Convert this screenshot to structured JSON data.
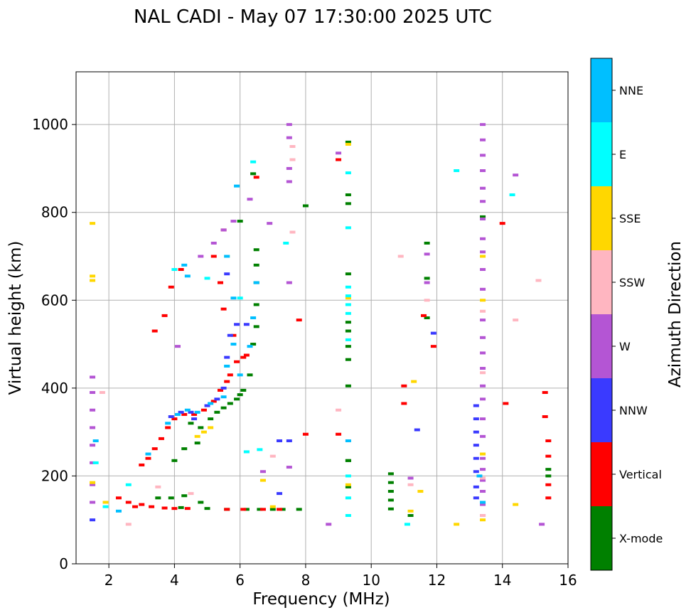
{
  "chart_data": {
    "type": "scatter",
    "title": "NAL CADI - May 07 17:30:00 2025 UTC",
    "xlabel": "Frequency (MHz)",
    "ylabel": "Virtual height (km)",
    "xlim": [
      1,
      16
    ],
    "ylim": [
      0,
      1120
    ],
    "xticks": [
      2,
      4,
      6,
      8,
      10,
      12,
      14,
      16
    ],
    "yticks": [
      0,
      200,
      400,
      600,
      800,
      1000
    ],
    "xtick_labels": [
      "2",
      "4",
      "6",
      "8",
      "10",
      "12",
      "14",
      "16"
    ],
    "ytick_labels": [
      "0",
      "200",
      "400",
      "600",
      "800",
      "1000"
    ],
    "grid": true,
    "colorbar": {
      "label": "Azimuth Direction",
      "categories": [
        "X-mode",
        "Vertical",
        "NNW",
        "W",
        "SSW",
        "SSE",
        "E",
        "NNE"
      ],
      "colors": [
        "#008000",
        "#ff0000",
        "#3a3aff",
        "#b455d4",
        "#ffb6c1",
        "#ffd700",
        "#00ffff",
        "#00bfff"
      ]
    },
    "series": [
      {
        "name": "X-mode",
        "points": [
          [
            3.5,
            150
          ],
          [
            3.9,
            150
          ],
          [
            4.3,
            155
          ],
          [
            4.8,
            140
          ],
          [
            4.2,
            128
          ],
          [
            5.0,
            126
          ],
          [
            5.6,
            124
          ],
          [
            6.2,
            124
          ],
          [
            6.6,
            124
          ],
          [
            7.0,
            124
          ],
          [
            7.3,
            124
          ],
          [
            7.8,
            124
          ],
          [
            4.5,
            320
          ],
          [
            4.8,
            310
          ],
          [
            5.1,
            330
          ],
          [
            5.3,
            345
          ],
          [
            5.5,
            355
          ],
          [
            5.7,
            365
          ],
          [
            5.9,
            375
          ],
          [
            6.0,
            385
          ],
          [
            6.1,
            395
          ],
          [
            6.3,
            430
          ],
          [
            6.4,
            500
          ],
          [
            6.5,
            540
          ],
          [
            6.5,
            590
          ],
          [
            6.5,
            640
          ],
          [
            6.5,
            680
          ],
          [
            6.5,
            715
          ],
          [
            6.0,
            780
          ],
          [
            6.4,
            888
          ],
          [
            8.0,
            815
          ],
          [
            9.3,
            960
          ],
          [
            9.3,
            840
          ],
          [
            9.3,
            820
          ],
          [
            9.3,
            660
          ],
          [
            9.3,
            550
          ],
          [
            9.3,
            530
          ],
          [
            9.3,
            495
          ],
          [
            9.3,
            465
          ],
          [
            9.3,
            405
          ],
          [
            9.3,
            235
          ],
          [
            9.3,
            235
          ],
          [
            9.3,
            175
          ],
          [
            10.6,
            205
          ],
          [
            10.6,
            185
          ],
          [
            10.6,
            165
          ],
          [
            10.6,
            145
          ],
          [
            10.6,
            125
          ],
          [
            11.7,
            730
          ],
          [
            11.7,
            650
          ],
          [
            11.7,
            560
          ],
          [
            13.4,
            790
          ],
          [
            15.4,
            215
          ],
          [
            15.4,
            200
          ],
          [
            4.0,
            235
          ],
          [
            4.3,
            262
          ],
          [
            4.7,
            275
          ],
          [
            11.2,
            110
          ]
        ]
      },
      {
        "name": "Vertical",
        "points": [
          [
            2.3,
            150
          ],
          [
            2.6,
            140
          ],
          [
            2.8,
            130
          ],
          [
            3.0,
            135
          ],
          [
            3.3,
            130
          ],
          [
            3.7,
            127
          ],
          [
            4.0,
            126
          ],
          [
            4.4,
            126
          ],
          [
            5.6,
            124
          ],
          [
            6.1,
            124
          ],
          [
            6.7,
            124
          ],
          [
            7.2,
            124
          ],
          [
            3.0,
            225
          ],
          [
            3.2,
            240
          ],
          [
            3.4,
            262
          ],
          [
            3.6,
            285
          ],
          [
            3.8,
            310
          ],
          [
            4.0,
            330
          ],
          [
            4.3,
            340
          ],
          [
            4.6,
            340
          ],
          [
            4.9,
            350
          ],
          [
            5.2,
            370
          ],
          [
            5.4,
            395
          ],
          [
            5.6,
            415
          ],
          [
            5.7,
            430
          ],
          [
            5.9,
            460
          ],
          [
            6.1,
            470
          ],
          [
            6.2,
            475
          ],
          [
            5.8,
            520
          ],
          [
            5.5,
            580
          ],
          [
            5.4,
            640
          ],
          [
            4.2,
            670
          ],
          [
            3.9,
            630
          ],
          [
            3.7,
            565
          ],
          [
            3.4,
            530
          ],
          [
            5.2,
            700
          ],
          [
            5.5,
            760
          ],
          [
            6.5,
            880
          ],
          [
            8.0,
            295
          ],
          [
            9.0,
            295
          ],
          [
            9.0,
            920
          ],
          [
            7.8,
            555
          ],
          [
            11.0,
            405
          ],
          [
            11.0,
            365
          ],
          [
            11.9,
            495
          ],
          [
            14.0,
            775
          ],
          [
            14.1,
            365
          ],
          [
            15.3,
            390
          ],
          [
            15.3,
            335
          ],
          [
            15.4,
            280
          ],
          [
            15.4,
            245
          ],
          [
            15.4,
            180
          ],
          [
            15.4,
            150
          ],
          [
            11.6,
            565
          ]
        ]
      },
      {
        "name": "NNW",
        "points": [
          [
            3.9,
            335
          ],
          [
            4.2,
            345
          ],
          [
            4.5,
            345
          ],
          [
            5.0,
            360
          ],
          [
            5.3,
            375
          ],
          [
            5.5,
            400
          ],
          [
            5.6,
            470
          ],
          [
            5.7,
            520
          ],
          [
            5.9,
            545
          ],
          [
            6.2,
            545
          ],
          [
            5.6,
            660
          ],
          [
            4.6,
            330
          ],
          [
            7.2,
            160
          ],
          [
            7.2,
            280
          ],
          [
            7.5,
            280
          ],
          [
            11.9,
            525
          ],
          [
            11.4,
            305
          ],
          [
            13.2,
            360
          ],
          [
            13.2,
            330
          ],
          [
            13.2,
            300
          ],
          [
            13.2,
            270
          ],
          [
            13.2,
            240
          ],
          [
            13.2,
            210
          ],
          [
            13.2,
            175
          ],
          [
            13.2,
            150
          ],
          [
            1.5,
            100
          ]
        ]
      },
      {
        "name": "W",
        "points": [
          [
            1.5,
            425
          ],
          [
            1.5,
            390
          ],
          [
            1.5,
            350
          ],
          [
            1.5,
            310
          ],
          [
            1.5,
            270
          ],
          [
            1.5,
            230
          ],
          [
            1.5,
            180
          ],
          [
            1.5,
            140
          ],
          [
            4.1,
            495
          ],
          [
            4.8,
            700
          ],
          [
            5.2,
            730
          ],
          [
            5.5,
            760
          ],
          [
            5.8,
            780
          ],
          [
            6.3,
            830
          ],
          [
            7.5,
            1000
          ],
          [
            7.5,
            970
          ],
          [
            7.5,
            900
          ],
          [
            7.5,
            870
          ],
          [
            7.5,
            640
          ],
          [
            6.9,
            775
          ],
          [
            6.7,
            210
          ],
          [
            7.5,
            220
          ],
          [
            8.7,
            90
          ],
          [
            9.0,
            935
          ],
          [
            13.4,
            1000
          ],
          [
            13.4,
            965
          ],
          [
            13.4,
            930
          ],
          [
            13.4,
            895
          ],
          [
            13.4,
            855
          ],
          [
            13.4,
            825
          ],
          [
            13.4,
            785
          ],
          [
            13.4,
            740
          ],
          [
            13.4,
            710
          ],
          [
            13.4,
            670
          ],
          [
            13.4,
            625
          ],
          [
            13.4,
            555
          ],
          [
            13.4,
            515
          ],
          [
            13.4,
            480
          ],
          [
            13.4,
            445
          ],
          [
            13.4,
            405
          ],
          [
            13.4,
            375
          ],
          [
            13.4,
            330
          ],
          [
            13.4,
            290
          ],
          [
            13.4,
            240
          ],
          [
            13.4,
            215
          ],
          [
            13.4,
            190
          ],
          [
            13.4,
            165
          ],
          [
            13.4,
            135
          ],
          [
            13.4,
            110
          ],
          [
            14.4,
            885
          ],
          [
            15.2,
            90
          ],
          [
            11.2,
            195
          ],
          [
            11.7,
            640
          ],
          [
            11.7,
            705
          ]
        ]
      },
      {
        "name": "SSW",
        "points": [
          [
            1.8,
            390
          ],
          [
            2.6,
            90
          ],
          [
            3.5,
            175
          ],
          [
            4.5,
            160
          ],
          [
            6.2,
            255
          ],
          [
            7.0,
            245
          ],
          [
            7.6,
            755
          ],
          [
            7.6,
            920
          ],
          [
            7.6,
            950
          ],
          [
            9.0,
            350
          ],
          [
            9.3,
            280
          ],
          [
            10.9,
            700
          ],
          [
            11.2,
            180
          ],
          [
            11.7,
            600
          ],
          [
            13.4,
            575
          ],
          [
            13.4,
            435
          ],
          [
            13.4,
            195
          ],
          [
            13.4,
            110
          ],
          [
            14.4,
            555
          ],
          [
            15.1,
            645
          ]
        ]
      },
      {
        "name": "SSE",
        "points": [
          [
            1.5,
            775
          ],
          [
            1.5,
            655
          ],
          [
            1.5,
            645
          ],
          [
            1.5,
            185
          ],
          [
            1.9,
            140
          ],
          [
            4.7,
            290
          ],
          [
            4.9,
            300
          ],
          [
            5.1,
            310
          ],
          [
            5.6,
            700
          ],
          [
            6.7,
            190
          ],
          [
            7.0,
            130
          ],
          [
            9.3,
            180
          ],
          [
            9.3,
            605
          ],
          [
            9.3,
            955
          ],
          [
            11.3,
            415
          ],
          [
            11.5,
            165
          ],
          [
            11.2,
            120
          ],
          [
            12.6,
            90
          ],
          [
            13.4,
            700
          ],
          [
            13.4,
            600
          ],
          [
            13.4,
            250
          ],
          [
            13.4,
            100
          ],
          [
            14.4,
            135
          ]
        ]
      },
      {
        "name": "E",
        "points": [
          [
            1.6,
            230
          ],
          [
            1.9,
            130
          ],
          [
            2.6,
            180
          ],
          [
            4.0,
            670
          ],
          [
            5.0,
            650
          ],
          [
            5.6,
            450
          ],
          [
            6.0,
            605
          ],
          [
            6.4,
            915
          ],
          [
            6.2,
            255
          ],
          [
            6.6,
            260
          ],
          [
            7.4,
            730
          ],
          [
            9.3,
            630
          ],
          [
            9.3,
            610
          ],
          [
            9.3,
            590
          ],
          [
            9.3,
            570
          ],
          [
            9.3,
            510
          ],
          [
            9.3,
            890
          ],
          [
            9.3,
            765
          ],
          [
            9.3,
            200
          ],
          [
            9.3,
            150
          ],
          [
            9.3,
            110
          ],
          [
            11.1,
            90
          ],
          [
            12.6,
            895
          ],
          [
            14.3,
            840
          ]
        ]
      },
      {
        "name": "NNE",
        "points": [
          [
            1.6,
            280
          ],
          [
            2.3,
            120
          ],
          [
            3.2,
            250
          ],
          [
            3.8,
            320
          ],
          [
            4.1,
            340
          ],
          [
            4.4,
            350
          ],
          [
            4.7,
            345
          ],
          [
            5.1,
            365
          ],
          [
            5.5,
            380
          ],
          [
            5.6,
            450
          ],
          [
            5.8,
            500
          ],
          [
            6.0,
            430
          ],
          [
            6.3,
            495
          ],
          [
            6.4,
            560
          ],
          [
            6.5,
            640
          ],
          [
            5.8,
            605
          ],
          [
            5.6,
            700
          ],
          [
            5.9,
            860
          ],
          [
            4.3,
            680
          ],
          [
            4.4,
            655
          ],
          [
            9.3,
            280
          ],
          [
            13.4,
            140
          ],
          [
            13.3,
            200
          ]
        ]
      }
    ]
  }
}
